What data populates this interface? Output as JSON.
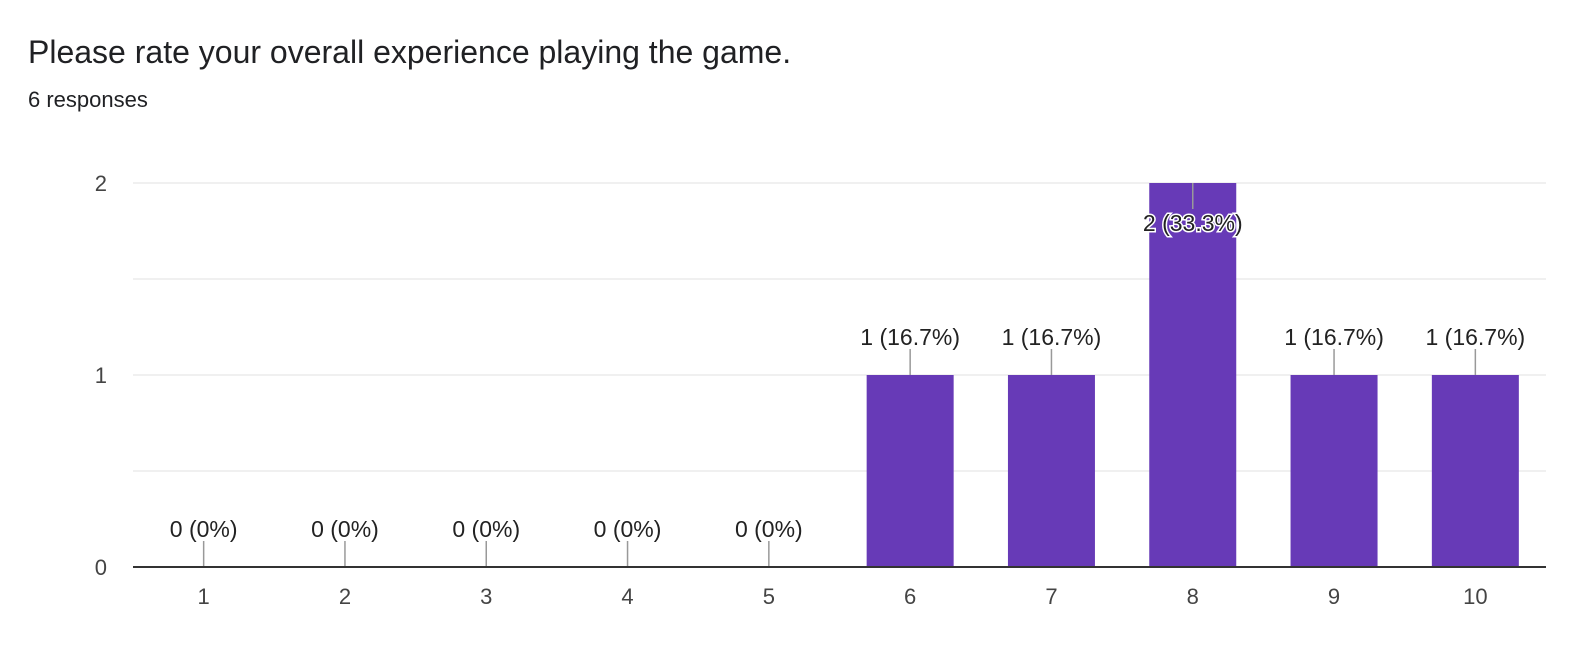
{
  "question": {
    "title": "Please rate your overall experience playing the game.",
    "responses": "6 responses"
  },
  "chart_data": {
    "type": "bar",
    "categories": [
      "1",
      "2",
      "3",
      "4",
      "5",
      "6",
      "7",
      "8",
      "9",
      "10"
    ],
    "values": [
      0,
      0,
      0,
      0,
      0,
      1,
      1,
      2,
      1,
      1
    ],
    "data_labels": [
      "0 (0%)",
      "0 (0%)",
      "0 (0%)",
      "0 (0%)",
      "0 (0%)",
      "1 (16.7%)",
      "1 (16.7%)",
      "2 (33.3%)",
      "1 (16.7%)",
      "1 (16.7%)"
    ],
    "title": "",
    "xlabel": "",
    "ylabel": "",
    "ylim": [
      0,
      2
    ],
    "yticks": [
      0,
      1,
      2
    ],
    "grid": true,
    "legend": "none",
    "bar_color": "#673ab7"
  }
}
